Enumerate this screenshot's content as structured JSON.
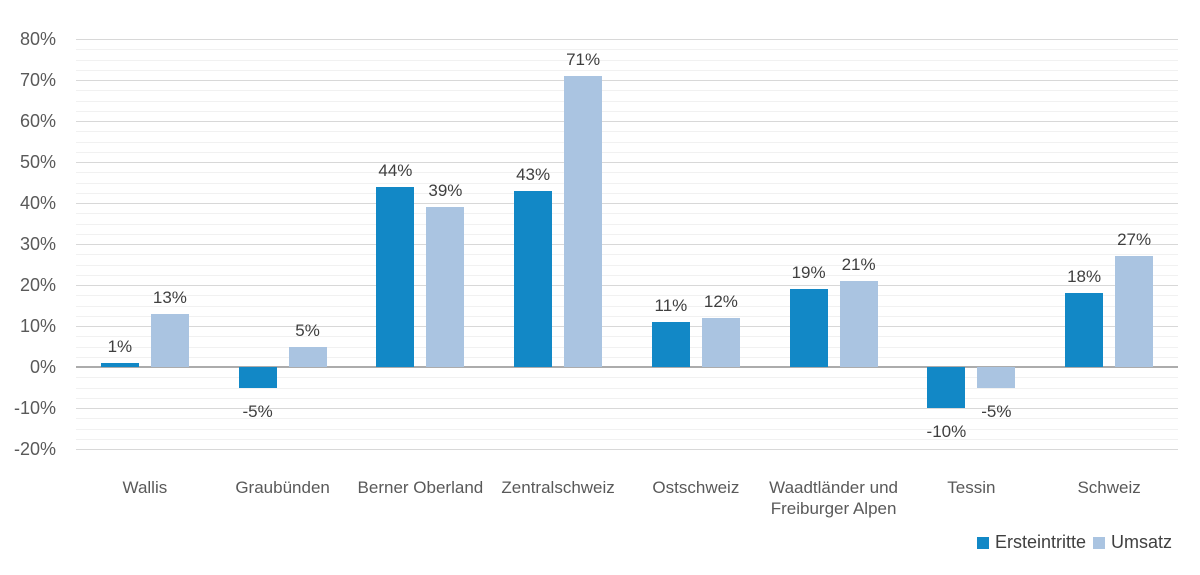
{
  "chart_data": {
    "type": "bar",
    "title": "",
    "categories": [
      "Wallis",
      "Graubünden",
      "Berner Oberland",
      "Zentralschweiz",
      "Ostschweiz",
      "Waadtländer und Freiburger Alpen",
      "Tessin",
      "Schweiz"
    ],
    "series": [
      {
        "name": "Ersteintritte",
        "color": "#1288C6",
        "values": [
          1,
          -5,
          44,
          43,
          11,
          19,
          -10,
          18
        ],
        "labels": [
          "1%",
          "-5%",
          "44%",
          "43%",
          "11%",
          "19%",
          "-10%",
          "18%"
        ]
      },
      {
        "name": "Umsatz",
        "color": "#AAC4E1",
        "values": [
          13,
          5,
          39,
          71,
          12,
          21,
          -5,
          27
        ],
        "labels": [
          "13%",
          "5%",
          "39%",
          "71%",
          "12%",
          "21%",
          "-5%",
          "27%"
        ]
      }
    ],
    "y_axis": {
      "min": -20,
      "max": 80,
      "tick_step": 10,
      "minor_step": 2.5,
      "tick_labels": [
        "80%",
        "70%",
        "60%",
        "50%",
        "40%",
        "30%",
        "20%",
        "10%",
        "0%",
        "-10%",
        "-20%"
      ]
    },
    "grid": {
      "major_horizontal": true,
      "minor_horizontal": true,
      "vertical": false
    },
    "legend": {
      "position": "bottom-right",
      "entries": [
        "Ersteintritte",
        "Umsatz"
      ]
    },
    "colors": {
      "series_dark": "#1288C6",
      "series_light": "#AAC4E1",
      "major_grid": "#D8D8D8",
      "minor_grid": "#F1F1F1",
      "zero_line": "#ACACAC",
      "axis_text": "#595959",
      "value_text": "#3F3F3F",
      "legend_text": "#404040",
      "background": "#FFFFFF"
    }
  }
}
